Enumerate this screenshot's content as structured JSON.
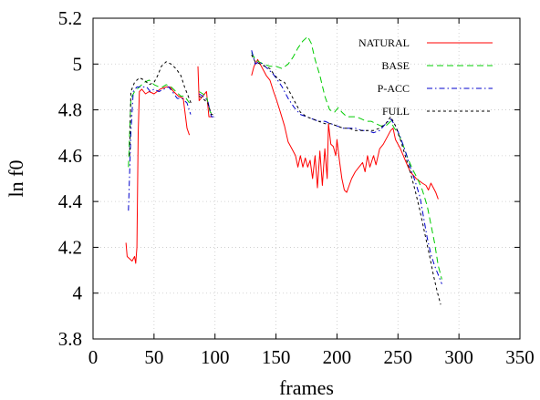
{
  "chart_data": {
    "type": "line",
    "xlabel": "frames",
    "ylabel": "ln f0",
    "xlim": [
      0,
      350
    ],
    "ylim": [
      3.8,
      5.2
    ],
    "xticks": [
      "0",
      "50",
      "100",
      "150",
      "200",
      "250",
      "300",
      "350"
    ],
    "yticks": [
      "3.8",
      "4",
      "4.2",
      "4.4",
      "4.6",
      "4.8",
      "5",
      "5.2"
    ],
    "grid": true,
    "legend_position": "top-right",
    "series": [
      {
        "name": "NATURAL",
        "color": "#ff0000",
        "dash": "solid",
        "segments": [
          [
            [
              27,
              4.22
            ],
            [
              28,
              4.16
            ],
            [
              30,
              4.15
            ],
            [
              32,
              4.14
            ],
            [
              34,
              4.16
            ],
            [
              35,
              4.13
            ],
            [
              36,
              4.2
            ],
            [
              37,
              4.7
            ],
            [
              38,
              4.88
            ],
            [
              40,
              4.89
            ],
            [
              43,
              4.87
            ],
            [
              46,
              4.88
            ],
            [
              50,
              4.87
            ],
            [
              55,
              4.89
            ],
            [
              60,
              4.9
            ],
            [
              63,
              4.9
            ],
            [
              66,
              4.88
            ],
            [
              70,
              4.86
            ],
            [
              74,
              4.85
            ],
            [
              77,
              4.72
            ],
            [
              79,
              4.69
            ]
          ],
          [
            [
              86,
              4.99
            ],
            [
              87,
              4.84
            ],
            [
              90,
              4.86
            ],
            [
              93,
              4.88
            ],
            [
              95,
              4.77
            ],
            [
              98,
              4.77
            ]
          ],
          [
            [
              130,
              4.95
            ],
            [
              132,
              4.99
            ],
            [
              135,
              5.02
            ],
            [
              138,
              4.99
            ],
            [
              140,
              4.97
            ],
            [
              142,
              4.95
            ],
            [
              145,
              4.93
            ],
            [
              148,
              4.88
            ],
            [
              150,
              4.85
            ],
            [
              153,
              4.8
            ],
            [
              157,
              4.73
            ],
            [
              160,
              4.66
            ],
            [
              163,
              4.63
            ],
            [
              166,
              4.6
            ],
            [
              168,
              4.55
            ],
            [
              170,
              4.6
            ],
            [
              172,
              4.55
            ],
            [
              174,
              4.59
            ],
            [
              176,
              4.55
            ],
            [
              178,
              4.58
            ],
            [
              180,
              4.5
            ],
            [
              182,
              4.6
            ],
            [
              184,
              4.46
            ],
            [
              186,
              4.62
            ],
            [
              188,
              4.47
            ],
            [
              190,
              4.63
            ],
            [
              192,
              4.5
            ],
            [
              193,
              4.74
            ],
            [
              195,
              4.65
            ],
            [
              197,
              4.64
            ],
            [
              199,
              4.6
            ],
            [
              200,
              4.67
            ],
            [
              202,
              4.58
            ],
            [
              204,
              4.5
            ],
            [
              206,
              4.45
            ],
            [
              208,
              4.44
            ],
            [
              210,
              4.47
            ],
            [
              212,
              4.5
            ],
            [
              215,
              4.53
            ],
            [
              218,
              4.55
            ],
            [
              221,
              4.57
            ],
            [
              223,
              4.53
            ],
            [
              225,
              4.6
            ],
            [
              227,
              4.55
            ],
            [
              230,
              4.6
            ],
            [
              232,
              4.56
            ],
            [
              235,
              4.63
            ],
            [
              238,
              4.65
            ],
            [
              241,
              4.68
            ],
            [
              244,
              4.71
            ],
            [
              246,
              4.72
            ],
            [
              248,
              4.67
            ],
            [
              252,
              4.63
            ],
            [
              256,
              4.58
            ],
            [
              260,
              4.53
            ],
            [
              265,
              4.5
            ],
            [
              270,
              4.48
            ],
            [
              273,
              4.47
            ],
            [
              275,
              4.45
            ],
            [
              277,
              4.48
            ],
            [
              279,
              4.46
            ],
            [
              281,
              4.44
            ],
            [
              283,
              4.41
            ]
          ]
        ]
      },
      {
        "name": "BASE",
        "color": "#00cc00",
        "dash": "long",
        "segments": [
          [
            [
              29,
              4.55
            ],
            [
              31,
              4.85
            ],
            [
              34,
              4.88
            ],
            [
              38,
              4.9
            ],
            [
              42,
              4.92
            ],
            [
              46,
              4.93
            ],
            [
              50,
              4.91
            ],
            [
              54,
              4.9
            ],
            [
              57,
              4.9
            ],
            [
              60,
              4.91
            ],
            [
              64,
              4.9
            ],
            [
              68,
              4.88
            ],
            [
              72,
              4.86
            ],
            [
              75,
              4.86
            ],
            [
              79,
              4.83
            ]
          ],
          [
            [
              87,
              4.88
            ],
            [
              90,
              4.87
            ],
            [
              93,
              4.86
            ],
            [
              96,
              4.79
            ],
            [
              99,
              4.78
            ]
          ],
          [
            [
              130,
              5.05
            ],
            [
              133,
              5.02
            ],
            [
              136,
              5.01
            ],
            [
              140,
              5.0
            ],
            [
              145,
              4.99
            ],
            [
              150,
              4.99
            ],
            [
              155,
              4.98
            ],
            [
              160,
              5.0
            ],
            [
              164,
              5.03
            ],
            [
              168,
              5.07
            ],
            [
              172,
              5.1
            ],
            [
              176,
              5.12
            ],
            [
              179,
              5.09
            ],
            [
              182,
              5.02
            ],
            [
              186,
              4.95
            ],
            [
              190,
              4.86
            ],
            [
              194,
              4.8
            ],
            [
              198,
              4.79
            ],
            [
              201,
              4.81
            ],
            [
              204,
              4.79
            ],
            [
              208,
              4.77
            ],
            [
              212,
              4.77
            ],
            [
              216,
              4.77
            ],
            [
              220,
              4.76
            ],
            [
              224,
              4.75
            ],
            [
              228,
              4.75
            ],
            [
              232,
              4.74
            ],
            [
              236,
              4.73
            ],
            [
              240,
              4.73
            ],
            [
              244,
              4.75
            ],
            [
              247,
              4.72
            ],
            [
              250,
              4.7
            ],
            [
              254,
              4.65
            ],
            [
              258,
              4.59
            ],
            [
              262,
              4.54
            ],
            [
              266,
              4.5
            ],
            [
              270,
              4.45
            ],
            [
              274,
              4.38
            ],
            [
              277,
              4.3
            ],
            [
              280,
              4.22
            ],
            [
              283,
              4.12
            ],
            [
              286,
              4.06
            ]
          ]
        ]
      },
      {
        "name": "P-ACC",
        "color": "#0000cc",
        "dash": "dashdot",
        "segments": [
          [
            [
              29,
              4.36
            ],
            [
              31,
              4.7
            ],
            [
              33,
              4.88
            ],
            [
              36,
              4.9
            ],
            [
              40,
              4.9
            ],
            [
              44,
              4.9
            ],
            [
              47,
              4.88
            ],
            [
              50,
              4.89
            ],
            [
              54,
              4.88
            ],
            [
              58,
              4.89
            ],
            [
              62,
              4.9
            ],
            [
              65,
              4.88
            ],
            [
              69,
              4.85
            ],
            [
              73,
              4.85
            ],
            [
              77,
              4.83
            ],
            [
              80,
              4.78
            ]
          ],
          [
            [
              87,
              4.87
            ],
            [
              90,
              4.86
            ],
            [
              94,
              4.84
            ],
            [
              97,
              4.77
            ],
            [
              99,
              4.77
            ]
          ],
          [
            [
              130,
              5.06
            ],
            [
              133,
              5.0
            ],
            [
              136,
              5.01
            ],
            [
              139,
              5.0
            ],
            [
              143,
              4.98
            ],
            [
              147,
              4.96
            ],
            [
              150,
              4.94
            ],
            [
              155,
              4.9
            ],
            [
              160,
              4.85
            ],
            [
              165,
              4.81
            ],
            [
              170,
              4.78
            ],
            [
              175,
              4.77
            ],
            [
              180,
              4.76
            ],
            [
              185,
              4.75
            ],
            [
              190,
              4.75
            ],
            [
              195,
              4.74
            ],
            [
              200,
              4.73
            ],
            [
              205,
              4.72
            ],
            [
              210,
              4.72
            ],
            [
              215,
              4.72
            ],
            [
              220,
              4.71
            ],
            [
              225,
              4.71
            ],
            [
              230,
              4.7
            ],
            [
              235,
              4.71
            ],
            [
              240,
              4.74
            ],
            [
              244,
              4.76
            ],
            [
              248,
              4.73
            ],
            [
              252,
              4.68
            ],
            [
              256,
              4.62
            ],
            [
              260,
              4.55
            ],
            [
              264,
              4.49
            ],
            [
              268,
              4.42
            ],
            [
              271,
              4.33
            ],
            [
              274,
              4.24
            ],
            [
              277,
              4.17
            ],
            [
              280,
              4.12
            ],
            [
              283,
              4.08
            ],
            [
              286,
              4.04
            ]
          ]
        ]
      },
      {
        "name": "FULL",
        "color": "#000000",
        "dash": "short",
        "segments": [
          [
            [
              30,
              4.6
            ],
            [
              31,
              4.88
            ],
            [
              34,
              4.92
            ],
            [
              38,
              4.94
            ],
            [
              42,
              4.93
            ],
            [
              46,
              4.91
            ],
            [
              50,
              4.92
            ],
            [
              53,
              4.95
            ],
            [
              56,
              4.99
            ],
            [
              60,
              5.01
            ],
            [
              64,
              5.0
            ],
            [
              68,
              4.98
            ],
            [
              72,
              4.95
            ],
            [
              75,
              4.9
            ],
            [
              78,
              4.86
            ],
            [
              81,
              4.82
            ]
          ],
          [
            [
              87,
              4.86
            ],
            [
              90,
              4.85
            ],
            [
              94,
              4.83
            ],
            [
              97,
              4.78
            ],
            [
              99,
              4.78
            ]
          ],
          [
            [
              130,
              5.04
            ],
            [
              133,
              5.01
            ],
            [
              137,
              5.0
            ],
            [
              141,
              4.99
            ],
            [
              145,
              4.98
            ],
            [
              149,
              4.95
            ],
            [
              153,
              4.93
            ],
            [
              157,
              4.92
            ],
            [
              161,
              4.88
            ],
            [
              165,
              4.84
            ],
            [
              170,
              4.79
            ],
            [
              175,
              4.77
            ],
            [
              180,
              4.76
            ],
            [
              185,
              4.75
            ],
            [
              190,
              4.74
            ],
            [
              195,
              4.74
            ],
            [
              200,
              4.73
            ],
            [
              205,
              4.72
            ],
            [
              210,
              4.72
            ],
            [
              215,
              4.71
            ],
            [
              220,
              4.71
            ],
            [
              225,
              4.71
            ],
            [
              230,
              4.71
            ],
            [
              235,
              4.72
            ],
            [
              240,
              4.74
            ],
            [
              244,
              4.77
            ],
            [
              248,
              4.73
            ],
            [
              252,
              4.67
            ],
            [
              256,
              4.6
            ],
            [
              260,
              4.53
            ],
            [
              264,
              4.45
            ],
            [
              268,
              4.36
            ],
            [
              272,
              4.26
            ],
            [
              276,
              4.16
            ],
            [
              279,
              4.08
            ],
            [
              282,
              4.01
            ],
            [
              285,
              3.95
            ]
          ]
        ]
      }
    ]
  }
}
